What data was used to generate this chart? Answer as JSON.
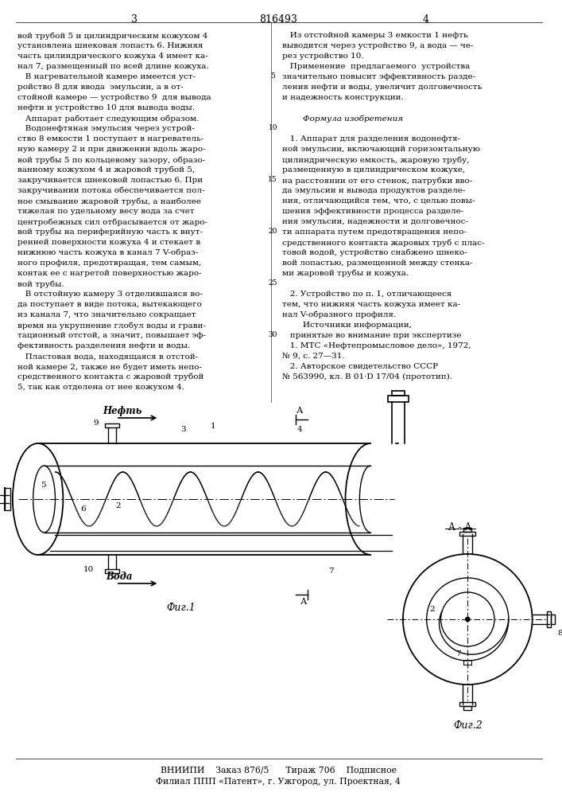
{
  "bg_color": "#ffffff",
  "page_number_left": "3",
  "page_number_center": "816493",
  "page_number_right": "4",
  "col_left_text": [
    "вой трубой 5 и цилиндрическим кожухом 4",
    "установлена шнековая лопасть 6. Нижняя",
    "часть цилиндрического кожуха 4 имеет ка-",
    "нал 7, размещенный по всей длине кожуха.",
    "   В нагревательной камере имеется уст-",
    "ройство 8 для ввода  эмульсии, а в от-",
    "стойной камере — устройство 9  для вывода",
    "нефти и устройство 10 для вывода воды.",
    "   Аппарат работает следующим образом.",
    "   Водонефтяная эмульсия через устрой-",
    "ство 8 емкости 1 поступает в нагреватель-",
    "ную камеру 2 и при движении вдоль жаро-",
    "вой трубы 5 по кольцевому зазору, образо-",
    "ванному кожухом 4 и жаровой трубой 5,",
    "закручивается шнековой лопастью 6. При",
    "закручивании потока обеспечивается пол-",
    "ное смывание жаровой трубы, а наиболее",
    "тяжелая по удельному весу вода за счет",
    "центробежных сил отбрасывается от жаро-",
    "вой трубы на периферийную часть к внут-",
    "ренней поверхности кожуха 4 и стекает в",
    "нижнюю часть кожуха в канал 7 V-образ-",
    "ного профиля, предотвращая, тем самым,",
    "контак ее с нагретой поверхностью жаро-",
    "вой трубы.",
    "   В отстойную камеру 3 отделившаяся во-",
    "да поступает в виде потока, вытекающего",
    "из канала 7, что значительно сокращает",
    "время на укрупнение глобул воды и грави-",
    "тационный отстой, а значит, повышает эф-",
    "фективность разделения нефти и воды.",
    "   Пластовая вода, находящаяся в отстой-",
    "ной камере 2, также не будет иметь непо-",
    "средственного контакта с жаровой трубой",
    "5, так как отделена от нее кожухом 4."
  ],
  "col_right_text": [
    "   Из отстойной камеры 3 емкости 1 нефть",
    "выводится через устройство 9, а вода — че-",
    "рез устройство 10.",
    "   Применение  предлагаемого  устройства",
    "значительно повысит эффективность разде-",
    "ления нефти и воды, увеличит долговечность",
    "и надежность конструкции.",
    "",
    "        Формула изобретения",
    "",
    "   1. Аппарат для разделения водонефтя-",
    "ной эмульсии, включающий горизонтальную",
    "цилиндрическую емкость, жаровую трубу,",
    "размещенную в цилиндрическом кожухе,",
    "на расстоянии от его стенок, патрубки вво-",
    "да эмульсии и вывода продуктов разделе-",
    "ния, отличающийся тем, что, с целью повы-",
    "шения эффективности процесса разделе-",
    "ния эмульсии, надежности и долговечнос-",
    "ти аппарата путем предотвращения непо-",
    "средственного контакта жаровых труб с плас-",
    "товой водой, устройство снабжено шнеко-",
    "вой лопастью, размещенной между стенка-",
    "ми жаровой трубы и кожуха.",
    "",
    "   2. Устройство по п. 1, отличающееся",
    "тем, что нижняя часть кожуха имеет ка-",
    "нал V-образного профиля.",
    "        Источники информации,",
    "   принятые во внимание при экспертизе",
    "   1. МТС «Нефтепромысловое дело», 1972,",
    "№ 9, с. 27—31.",
    "   2. Авторское свидетельство СССР",
    "№ 563990, кл. В 01·D 17/04 (прототип)."
  ],
  "footer_line1": "ВНИИПИ    Заказ 876/5      Тираж 706    Подписное",
  "footer_line2": "Филиал ППП «Патент», г. Ужгород, ул. Проектная, 4"
}
